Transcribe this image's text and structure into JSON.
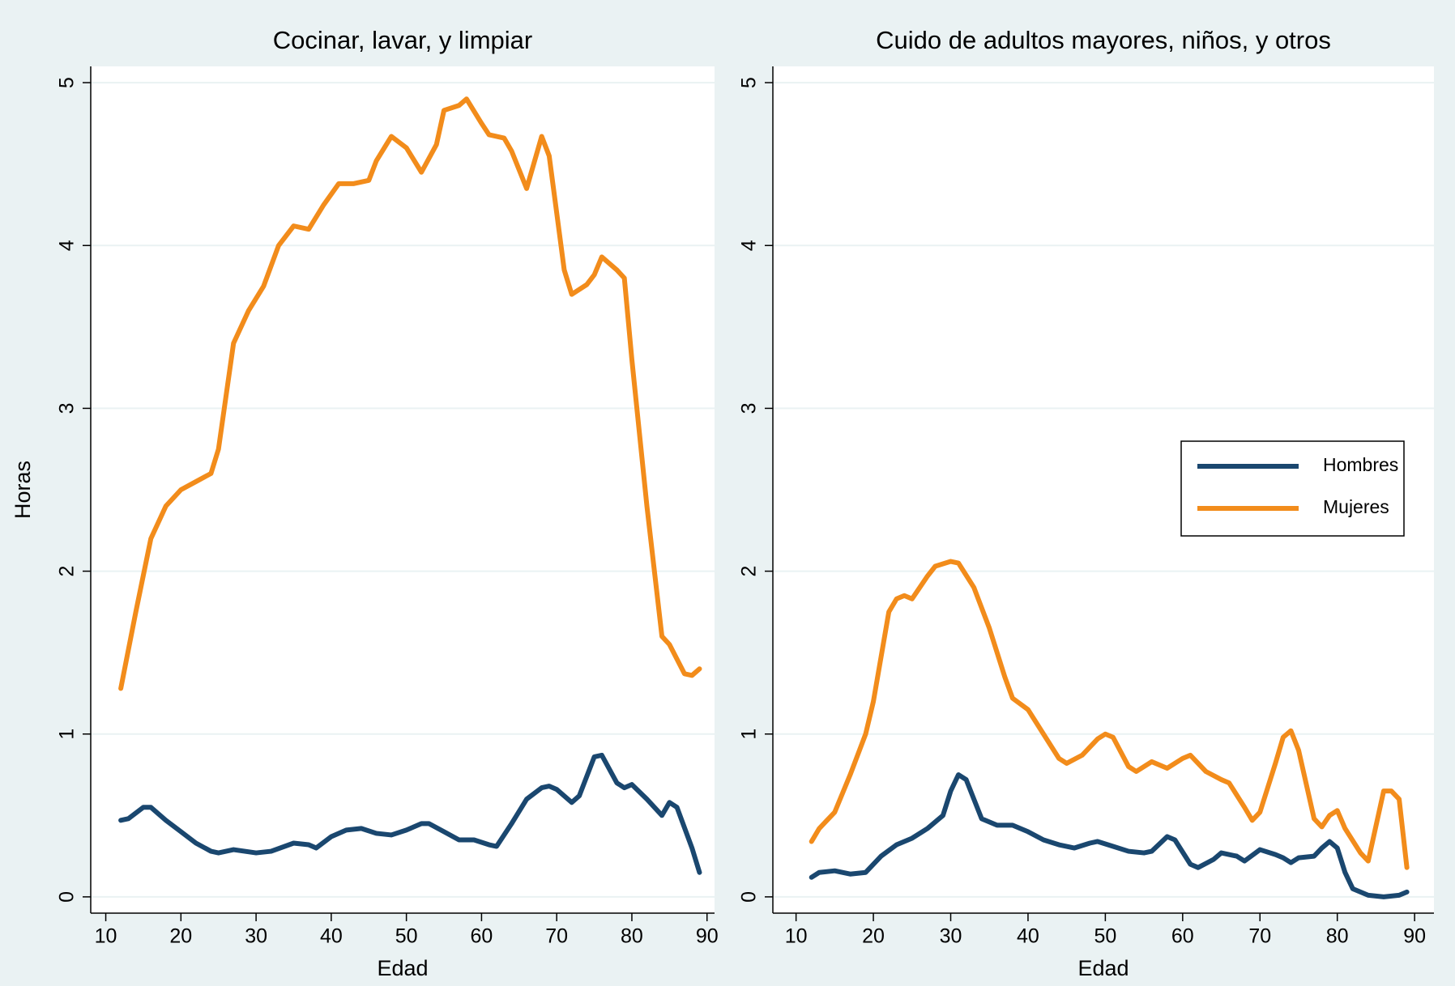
{
  "chart_data": [
    {
      "type": "line",
      "title": "Cocinar, lavar, y limpiar",
      "x_label": "Edad",
      "y_label": "Horas",
      "xlim": [
        8,
        91
      ],
      "ylim": [
        -0.1,
        5.1
      ],
      "xticks": [
        10,
        20,
        30,
        40,
        50,
        60,
        70,
        80,
        90
      ],
      "yticks": [
        0,
        1,
        2,
        3,
        4,
        5
      ],
      "grid": true,
      "series": [
        {
          "name": "Hombres",
          "color": "#1a476f",
          "x": [
            12,
            13,
            15,
            16,
            18,
            20,
            22,
            24,
            25,
            27,
            30,
            32,
            35,
            37,
            38,
            40,
            42,
            44,
            46,
            48,
            50,
            52,
            53,
            55,
            57,
            59,
            61,
            62,
            64,
            66,
            68,
            69,
            70,
            72,
            73,
            75,
            76,
            78,
            79,
            80,
            82,
            84,
            85,
            86,
            88,
            89
          ],
          "values": [
            0.47,
            0.48,
            0.55,
            0.55,
            0.47,
            0.4,
            0.33,
            0.28,
            0.27,
            0.29,
            0.27,
            0.28,
            0.33,
            0.32,
            0.3,
            0.37,
            0.41,
            0.42,
            0.39,
            0.38,
            0.41,
            0.45,
            0.45,
            0.4,
            0.35,
            0.35,
            0.32,
            0.31,
            0.45,
            0.6,
            0.67,
            0.68,
            0.66,
            0.58,
            0.62,
            0.86,
            0.87,
            0.7,
            0.67,
            0.69,
            0.6,
            0.5,
            0.58,
            0.55,
            0.3,
            0.15
          ]
        },
        {
          "name": "Mujeres",
          "color": "#f28c1b",
          "x": [
            12,
            14,
            16,
            18,
            20,
            22,
            24,
            25,
            27,
            29,
            31,
            33,
            35,
            37,
            39,
            41,
            43,
            45,
            46,
            48,
            50,
            52,
            54,
            55,
            57,
            58,
            60,
            61,
            63,
            64,
            66,
            68,
            69,
            71,
            72,
            74,
            75,
            76,
            78,
            79,
            80,
            82,
            84,
            85,
            87,
            88,
            89
          ],
          "values": [
            1.28,
            1.75,
            2.2,
            2.4,
            2.5,
            2.55,
            2.6,
            2.75,
            3.4,
            3.6,
            3.75,
            4.0,
            4.12,
            4.1,
            4.25,
            4.38,
            4.38,
            4.4,
            4.52,
            4.67,
            4.6,
            4.45,
            4.62,
            4.83,
            4.86,
            4.9,
            4.75,
            4.68,
            4.66,
            4.58,
            4.35,
            4.67,
            4.55,
            3.85,
            3.7,
            3.76,
            3.82,
            3.93,
            3.85,
            3.8,
            3.3,
            2.4,
            1.6,
            1.55,
            1.37,
            1.36,
            1.4
          ]
        }
      ]
    },
    {
      "type": "line",
      "title": "Cuido de adultos mayores, niños, y otros",
      "x_label": "Edad",
      "xlim": [
        7,
        92.5
      ],
      "ylim": [
        -0.1,
        5.1
      ],
      "xticks": [
        10,
        20,
        30,
        40,
        50,
        60,
        70,
        80,
        90
      ],
      "yticks": [
        0,
        1,
        2,
        3,
        4,
        5
      ],
      "grid": true,
      "legend": "right",
      "series": [
        {
          "name": "Hombres",
          "color": "#1a476f",
          "x": [
            12,
            13,
            15,
            17,
            19,
            21,
            23,
            25,
            27,
            29,
            30,
            31,
            32,
            33,
            34,
            36,
            38,
            40,
            42,
            44,
            46,
            48,
            49,
            51,
            53,
            55,
            56,
            58,
            59,
            61,
            62,
            64,
            65,
            67,
            68,
            70,
            72,
            73,
            74,
            75,
            77,
            78,
            79,
            80,
            81,
            82,
            84,
            86,
            88,
            89
          ],
          "values": [
            0.12,
            0.15,
            0.16,
            0.14,
            0.15,
            0.25,
            0.32,
            0.36,
            0.42,
            0.5,
            0.65,
            0.75,
            0.72,
            0.6,
            0.48,
            0.44,
            0.44,
            0.4,
            0.35,
            0.32,
            0.3,
            0.33,
            0.34,
            0.31,
            0.28,
            0.27,
            0.28,
            0.37,
            0.35,
            0.2,
            0.18,
            0.23,
            0.27,
            0.25,
            0.22,
            0.29,
            0.26,
            0.24,
            0.21,
            0.24,
            0.25,
            0.3,
            0.34,
            0.3,
            0.15,
            0.05,
            0.01,
            0.0,
            0.01,
            0.03
          ]
        },
        {
          "name": "Mujeres",
          "color": "#f28c1b",
          "x": [
            12,
            13,
            15,
            17,
            19,
            20,
            22,
            23,
            24,
            25,
            27,
            28,
            30,
            31,
            33,
            35,
            37,
            38,
            40,
            42,
            44,
            45,
            47,
            49,
            50,
            51,
            53,
            54,
            56,
            58,
            60,
            61,
            63,
            65,
            66,
            68,
            69,
            70,
            72,
            73,
            74,
            75,
            77,
            78,
            79,
            80,
            81,
            83,
            84,
            86,
            87,
            88,
            89
          ],
          "values": [
            0.34,
            0.42,
            0.52,
            0.75,
            1.0,
            1.2,
            1.75,
            1.83,
            1.85,
            1.83,
            1.97,
            2.03,
            2.06,
            2.05,
            1.9,
            1.65,
            1.35,
            1.22,
            1.15,
            1.0,
            0.85,
            0.82,
            0.87,
            0.97,
            1.0,
            0.98,
            0.8,
            0.77,
            0.83,
            0.79,
            0.85,
            0.87,
            0.77,
            0.72,
            0.7,
            0.55,
            0.47,
            0.52,
            0.82,
            0.98,
            1.02,
            0.9,
            0.48,
            0.43,
            0.5,
            0.53,
            0.42,
            0.27,
            0.22,
            0.65,
            0.65,
            0.6,
            0.18
          ]
        }
      ]
    }
  ]
}
